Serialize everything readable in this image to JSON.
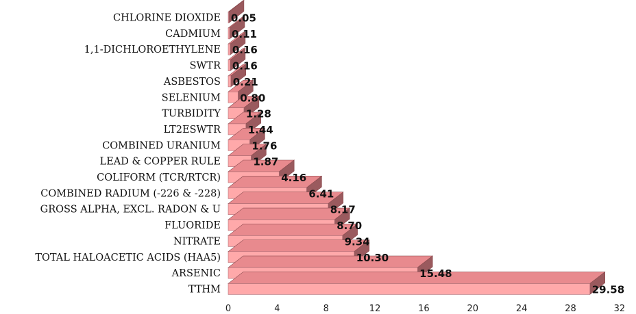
{
  "chart_data": {
    "type": "bar",
    "orientation": "horizontal",
    "style": "3d",
    "bar_color": "#ffa9aa",
    "bar_top_color": "#e88a8e",
    "bar_side_color": "#9a5a5e",
    "categories": [
      "CHLORINE DIOXIDE",
      "CADMIUM",
      "1,1-DICHLOROETHYLENE",
      "SWTR",
      "ASBESTOS",
      "SELENIUM",
      "TURBIDITY",
      "LT2ESWTR",
      "COMBINED URANIUM",
      "LEAD & COPPER RULE",
      "COLIFORM (TCR/RTCR)",
      "COMBINED RADIUM (-226 & -228)",
      "GROSS ALPHA, EXCL. RADON & U",
      "FLUORIDE",
      "NITRATE",
      "TOTAL HALOACETIC ACIDS (HAA5)",
      "ARSENIC",
      "TTHM"
    ],
    "values": [
      0.05,
      0.11,
      0.16,
      0.16,
      0.21,
      0.8,
      1.28,
      1.44,
      1.76,
      1.87,
      4.16,
      6.41,
      8.17,
      8.7,
      9.34,
      10.3,
      15.48,
      29.58
    ],
    "value_labels": [
      "0.05",
      "0.11",
      "0.16",
      "0.16",
      "0.21",
      "0.80",
      "1.28",
      "1.44",
      "1.76",
      "1.87",
      "4.16",
      "6.41",
      "8.17",
      "8.70",
      "9.34",
      "10.30",
      "15.48",
      "29.58"
    ],
    "xlim": [
      0,
      32
    ],
    "xticks": [
      0,
      4,
      8,
      12,
      16,
      20,
      24,
      28,
      32
    ],
    "xtick_labels": [
      "0",
      "4",
      "8",
      "12",
      "16",
      "20",
      "24",
      "28",
      "32"
    ],
    "title": "",
    "xlabel": "",
    "ylabel": "",
    "grid": false,
    "legend": "none"
  }
}
